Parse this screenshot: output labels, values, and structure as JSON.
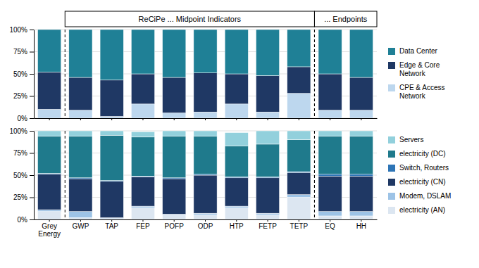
{
  "chart_data": [
    {
      "type": "bar",
      "stacked": true,
      "grid": true,
      "legend": "right",
      "tick_labels": "y",
      "categories": [
        "Grey\nEnergy",
        "GWP",
        "TAP",
        "FEP",
        "POFP",
        "ODP",
        "HTP",
        "FETP",
        "TETP",
        "EQ",
        "HH"
      ],
      "ylim": [
        0,
        100
      ],
      "yticks": [
        {
          "value": 0,
          "label": "0%"
        },
        {
          "value": 25,
          "label": "25%"
        },
        {
          "value": 50,
          "label": "50%"
        },
        {
          "value": 75,
          "label": "75%"
        },
        {
          "value": 100,
          "label": "100%"
        }
      ],
      "series": [
        {
          "name": "CPE & Access\nNetwork",
          "color": "#bdd7ee",
          "values": [
            10,
            9,
            2,
            16,
            6,
            7,
            16,
            7,
            28,
            9,
            9
          ]
        },
        {
          "name": "Edge & Core\nNetwork",
          "color": "#1f3864",
          "values": [
            42,
            37,
            41,
            34,
            40,
            44,
            34,
            41,
            30,
            41,
            37
          ]
        },
        {
          "name": "Data Center",
          "color": "#1f8096",
          "values": [
            48,
            54,
            57,
            50,
            54,
            49,
            50,
            52,
            42,
            50,
            54
          ]
        }
      ],
      "annotations": [
        {
          "text": "ReCiPe ... Midpoint Indicators",
          "span": [
            "GWP",
            "TETP"
          ]
        },
        {
          "text": "... Endpoints",
          "span": [
            "EQ",
            "HH"
          ]
        }
      ]
    },
    {
      "type": "bar",
      "stacked": true,
      "grid": true,
      "legend": "right",
      "categories": [
        "Grey\nEnergy",
        "GWP",
        "TAP",
        "FEP",
        "POFP",
        "ODP",
        "HTP",
        "FETP",
        "TETP",
        "EQ",
        "HH"
      ],
      "ylim": [
        0,
        100
      ],
      "yticks": [
        {
          "value": 0,
          "label": "0%"
        },
        {
          "value": 25,
          "label": "25%"
        },
        {
          "value": 50,
          "label": "50%"
        },
        {
          "value": 75,
          "label": "75%"
        },
        {
          "value": 100,
          "label": "100%"
        }
      ],
      "series": [
        {
          "name": "electricity (AN)",
          "color": "#dce6f1",
          "values": [
            9,
            2,
            1,
            13,
            5,
            5,
            13,
            5,
            25,
            4,
            4
          ]
        },
        {
          "name": "Modem, DSLAM",
          "color": "#9dc3e6",
          "values": [
            2,
            7,
            1,
            2,
            1,
            2,
            2,
            2,
            3,
            5,
            5
          ]
        },
        {
          "name": "electricity (CN)",
          "color": "#1f3864",
          "values": [
            40,
            37,
            41,
            33,
            40,
            43,
            32,
            40,
            25,
            40,
            40
          ]
        },
        {
          "name": "Switch, Routers",
          "color": "#2e75b6",
          "values": [
            1,
            1,
            1,
            1,
            1,
            1,
            1,
            1,
            1,
            2,
            2
          ]
        },
        {
          "name": "electricity (DC)",
          "color": "#1f7a8c",
          "values": [
            42,
            47,
            51,
            44,
            47,
            43,
            35,
            37,
            36,
            43,
            43
          ]
        },
        {
          "name": "Servers",
          "color": "#92d0dc",
          "values": [
            6,
            6,
            5,
            6,
            6,
            6,
            15,
            15,
            10,
            6,
            6
          ]
        }
      ]
    }
  ]
}
